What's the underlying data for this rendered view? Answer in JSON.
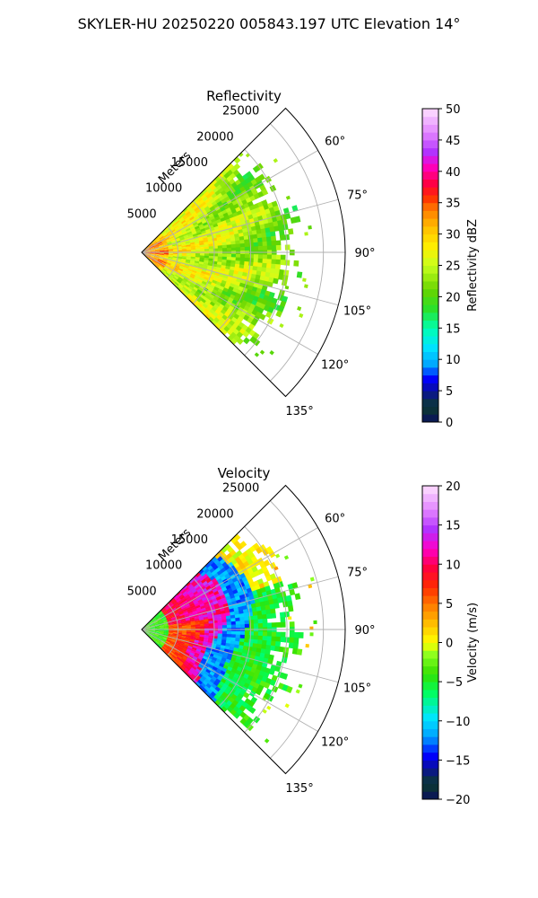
{
  "suptitle": "SKYLER-HU  20250220  005843.197 UTC Elevation 14°",
  "chart_data": [
    {
      "type": "heatmap",
      "title": "Reflectivity",
      "projection": "polar-sector",
      "radial_label": "Meters",
      "radial_ticks": [
        "5000",
        "10000",
        "15000",
        "20000",
        "25000"
      ],
      "radial_tick_values": [
        5000,
        10000,
        15000,
        20000,
        25000
      ],
      "angle_ticks": [
        "60°",
        "75°",
        "90°",
        "105°",
        "120°",
        "135°"
      ],
      "angle_tick_values": [
        60,
        75,
        90,
        105,
        120,
        135
      ],
      "theta_range_deg": [
        45,
        135
      ],
      "r_max": 28000,
      "data_extent": {
        "theta_deg": [
          45,
          135
        ],
        "r_max_m": [
          17500,
          25000
        ]
      },
      "grid": true,
      "colorbar": {
        "label": "Reflectivity dBZ",
        "range": [
          0,
          50
        ],
        "ticks": [
          "0",
          "5",
          "10",
          "15",
          "20",
          "25",
          "30",
          "35",
          "40",
          "45",
          "50"
        ],
        "tick_values": [
          0,
          5,
          10,
          15,
          20,
          25,
          30,
          35,
          40,
          45,
          50
        ]
      }
    },
    {
      "type": "heatmap",
      "title": "Velocity",
      "projection": "polar-sector",
      "radial_label": "Meters",
      "radial_ticks": [
        "5000",
        "10000",
        "15000",
        "20000",
        "25000"
      ],
      "radial_tick_values": [
        5000,
        10000,
        15000,
        20000,
        25000
      ],
      "angle_ticks": [
        "60°",
        "75°",
        "90°",
        "105°",
        "120°",
        "135°"
      ],
      "angle_tick_values": [
        60,
        75,
        90,
        105,
        120,
        135
      ],
      "theta_range_deg": [
        45,
        135
      ],
      "r_max": 28000,
      "data_extent": {
        "theta_deg": [
          45,
          135
        ],
        "r_max_m": [
          17500,
          25000
        ]
      },
      "grid": true,
      "colorbar": {
        "label": "Velocity (m/s)",
        "range": [
          -20,
          20
        ],
        "ticks": [
          "−20",
          "−15",
          "−10",
          "−5",
          "0",
          "5",
          "10",
          "15",
          "20"
        ],
        "tick_values": [
          -20,
          -15,
          -10,
          -5,
          0,
          5,
          10,
          15,
          20
        ]
      }
    }
  ]
}
